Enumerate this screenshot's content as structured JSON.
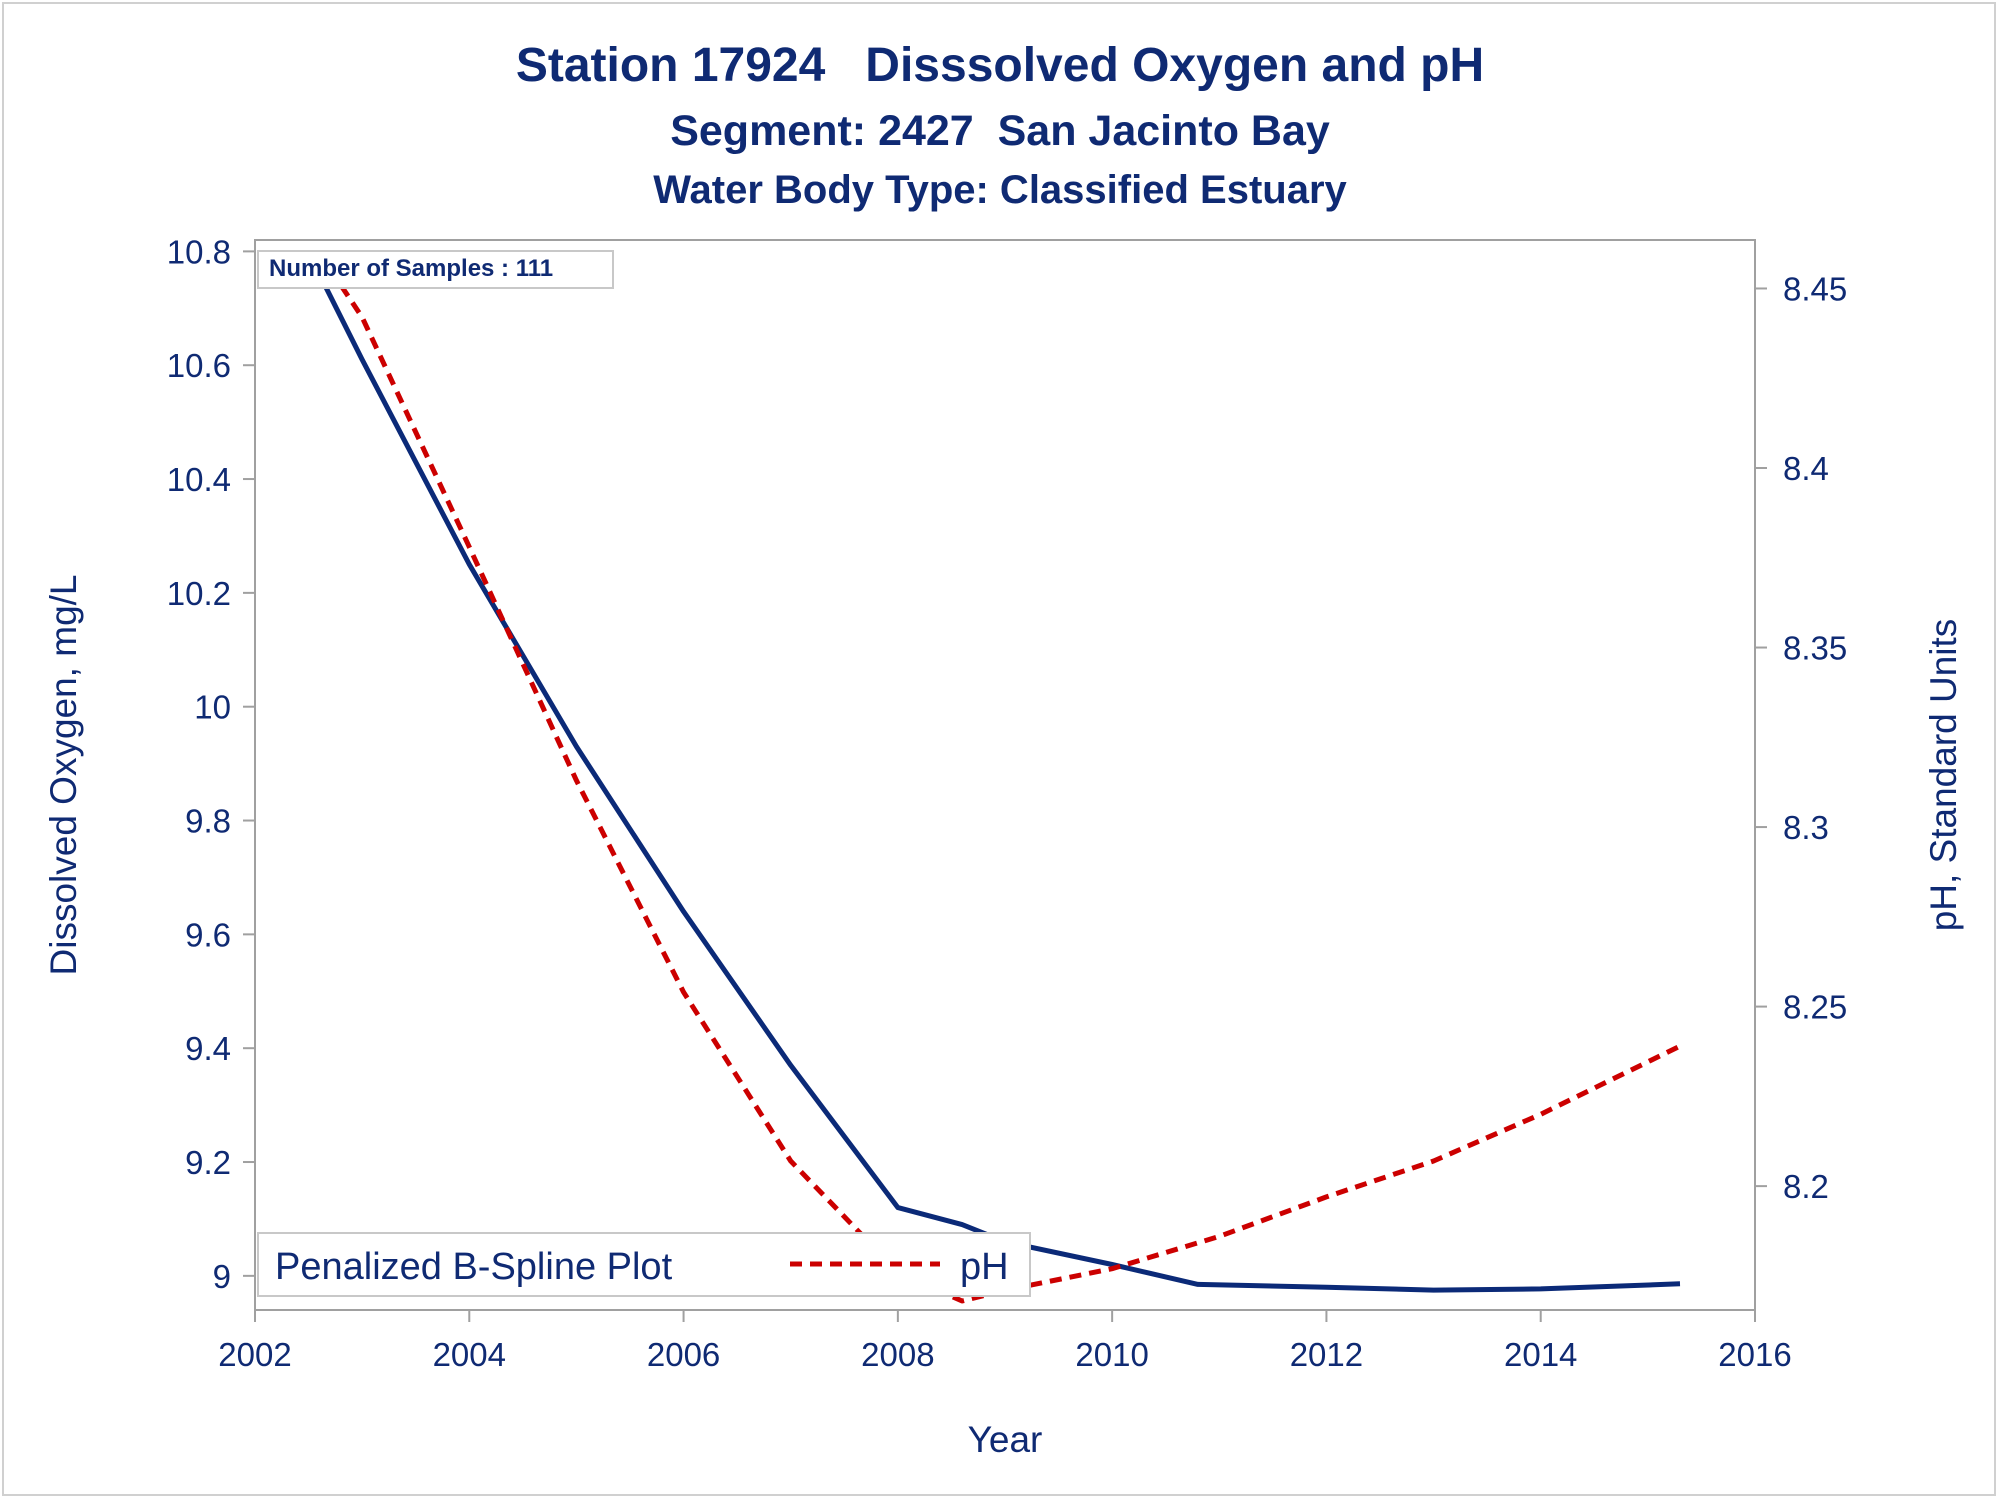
{
  "titles": {
    "line1": "Station 17924   Disssolved Oxygen and pH",
    "line2": "Segment: 2427  San Jacinto Bay",
    "line3": "Water Body Type: Classified Estuary"
  },
  "inset": {
    "text": "Number of Samples : 111"
  },
  "legend": {
    "title": "Penalized B-Spline Plot",
    "ph_label": "pH"
  },
  "colors": {
    "text": "#0f2a73",
    "do_line": "#0b2a78",
    "ph_line": "#cc0000",
    "frame": "#a0a0a0"
  },
  "chart_data": {
    "type": "line",
    "xlabel": "Year",
    "ylabel_left": "Dissolved Oxygen, mg/L",
    "ylabel_right": "pH, Standard Units",
    "xlim": [
      2002,
      2016
    ],
    "x_ticks": [
      "2002",
      "2004",
      "2006",
      "2008",
      "2010",
      "2012",
      "2014",
      "2016"
    ],
    "ylim_left": [
      8.94,
      10.82
    ],
    "y_ticks_left": [
      "9",
      "9.2",
      "9.4",
      "9.6",
      "9.8",
      "10",
      "10.2",
      "10.4",
      "10.6",
      "10.8"
    ],
    "ylim_right": [
      8.1655,
      8.4635
    ],
    "y_ticks_right": [
      "8.2",
      "8.25",
      "8.3",
      "8.35",
      "8.4",
      "8.45"
    ],
    "grid": false,
    "legend_position": "bottom-left",
    "series": [
      {
        "axis": "left",
        "style": "solid",
        "x": [
          2002.6,
          2003.0,
          2004.0,
          2005.0,
          2006.0,
          2007.0,
          2008.0,
          2008.6,
          2009.0,
          2010.0,
          2010.8,
          2012.0,
          2013.0,
          2014.0,
          2015.3
        ],
        "values": [
          10.76,
          10.61,
          10.25,
          9.93,
          9.64,
          9.37,
          9.12,
          9.09,
          9.06,
          9.02,
          8.985,
          8.98,
          8.975,
          8.977,
          8.986
        ]
      },
      {
        "name": "pH",
        "axis": "right",
        "style": "dashed",
        "x": [
          2002.6,
          2003.0,
          2004.0,
          2005.0,
          2006.0,
          2007.0,
          2008.0,
          2008.6,
          2009.0,
          2010.0,
          2011.0,
          2012.0,
          2013.0,
          2014.0,
          2015.3
        ],
        "values": [
          8.46,
          8.442,
          8.378,
          8.313,
          8.254,
          8.207,
          8.176,
          8.168,
          8.171,
          8.177,
          8.186,
          8.197,
          8.207,
          8.22,
          8.239
        ]
      }
    ]
  }
}
